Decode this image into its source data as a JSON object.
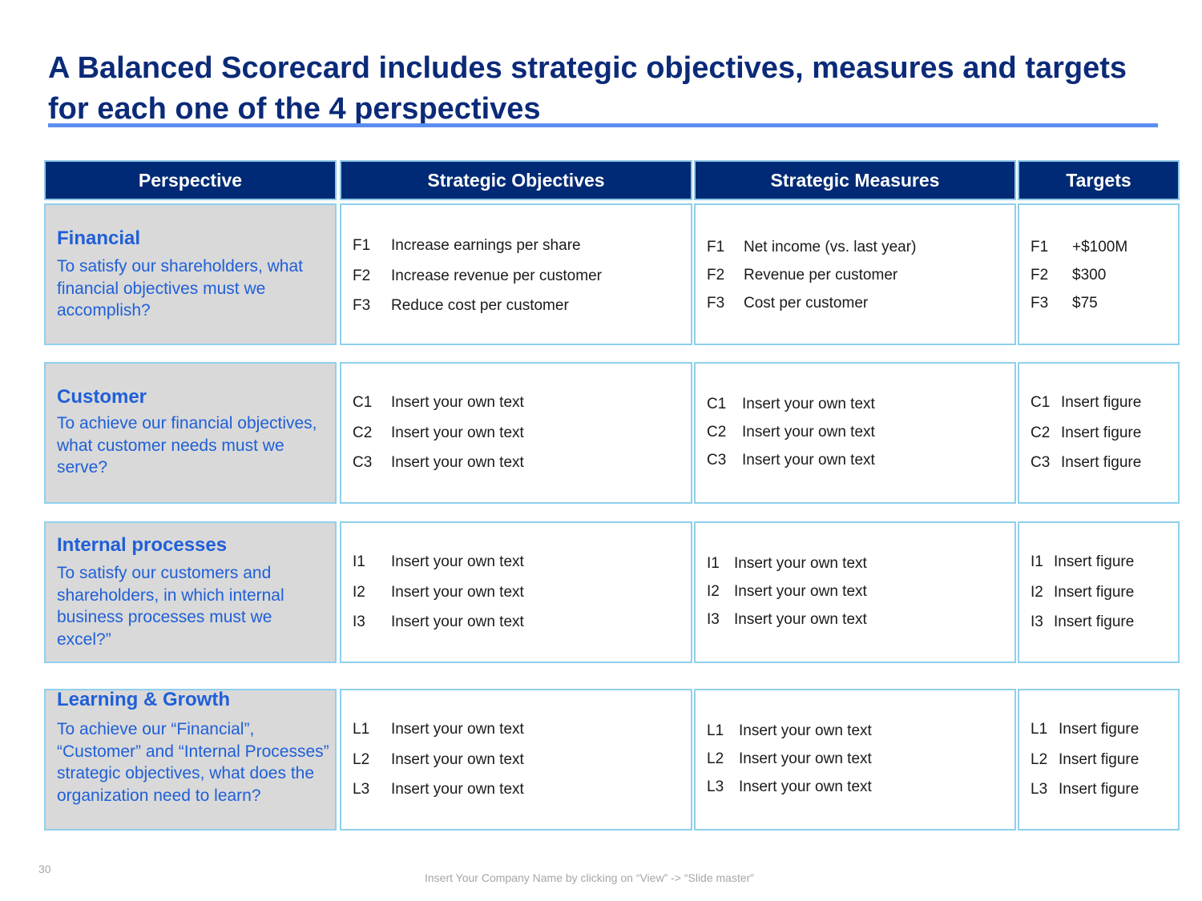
{
  "title": "A Balanced Scorecard includes strategic objectives, measures and targets for each one of the 4 perspectives",
  "headers": [
    "Perspective",
    "Strategic Objectives",
    "Strategic Measures",
    "Targets"
  ],
  "rows": [
    {
      "perspective_title": "Financial",
      "perspective_desc": "To satisfy our shareholders, what financial objectives must we accomplish?",
      "objectives": [
        [
          "F1",
          "Increase earnings per share"
        ],
        [
          "F2",
          "Increase revenue per customer"
        ],
        [
          "F3",
          "Reduce cost per customer"
        ]
      ],
      "measures": [
        [
          "F1",
          "Net income (vs. last year)"
        ],
        [
          "F2",
          "Revenue per customer"
        ],
        [
          "F3",
          "Cost per customer"
        ]
      ],
      "targets": [
        [
          "F1",
          "+$100M"
        ],
        [
          "F2",
          "$300"
        ],
        [
          "F3",
          "$75"
        ]
      ]
    },
    {
      "perspective_title": "Customer",
      "perspective_desc": "To achieve our financial objectives, what customer needs must we serve?",
      "objectives": [
        [
          "C1",
          "Insert your own text"
        ],
        [
          "C2",
          "Insert your own text"
        ],
        [
          "C3",
          "Insert your own text"
        ]
      ],
      "measures": [
        [
          "C1",
          "Insert your own text"
        ],
        [
          "C2",
          "Insert your own text"
        ],
        [
          "C3",
          "Insert your own text"
        ]
      ],
      "targets": [
        [
          "C1",
          "Insert figure"
        ],
        [
          "C2",
          "Insert figure"
        ],
        [
          "C3",
          "Insert figure"
        ]
      ]
    },
    {
      "perspective_title": "Internal processes",
      "perspective_desc": "To satisfy our customers and shareholders, in which internal business processes must we excel?”",
      "objectives": [
        [
          "I1",
          "Insert your own text"
        ],
        [
          "I2",
          "Insert your own text"
        ],
        [
          "I3",
          "Insert your own text"
        ]
      ],
      "measures": [
        [
          "I1",
          "Insert your own text"
        ],
        [
          "I2",
          "Insert your own text"
        ],
        [
          "I3",
          "Insert your own text"
        ]
      ],
      "targets": [
        [
          "I1",
          "Insert figure"
        ],
        [
          "I2",
          "Insert figure"
        ],
        [
          "I3",
          "Insert figure"
        ]
      ]
    },
    {
      "perspective_title": "Learning & Growth",
      "perspective_desc": "To achieve our “Financial”, “Customer” and “Internal Processes” strategic objectives, what does the organization need to learn?",
      "objectives": [
        [
          "L1",
          "Insert your own text"
        ],
        [
          "L2",
          "Insert your own text"
        ],
        [
          "L3",
          "Insert your own text"
        ]
      ],
      "measures": [
        [
          "L1",
          "Insert your own text"
        ],
        [
          "L2",
          "Insert your own text"
        ],
        [
          "L3",
          "Insert your own text"
        ]
      ],
      "targets": [
        [
          "L1",
          "Insert figure"
        ],
        [
          "L2",
          "Insert figure"
        ],
        [
          "L3",
          "Insert figure"
        ]
      ]
    }
  ],
  "footer": {
    "page_number": "30",
    "text": "Insert Your Company Name by clicking on “View” -> “Slide master”"
  }
}
